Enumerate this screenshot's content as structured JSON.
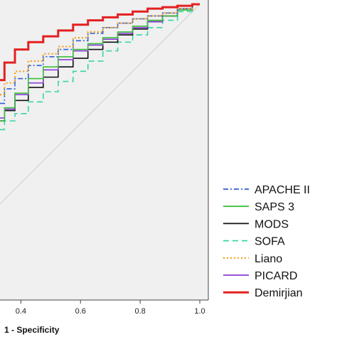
{
  "chart_data": {
    "type": "line",
    "title": "",
    "xlabel": "1 - Specificity",
    "ylabel": "",
    "xlim": [
      0.33,
      1.0
    ],
    "ylim": [
      0.0,
      1.0
    ],
    "x_ticks": [
      0.4,
      0.6,
      0.8,
      1.0
    ],
    "x_tick_labels": [
      "0.4",
      "0.6",
      "0.8",
      "1.0"
    ],
    "grid": false,
    "legend_position": "right",
    "plot_background": "#f0f0f0",
    "reference_line": {
      "color": "#d0d0d0",
      "style": "diagonal"
    },
    "series": [
      {
        "name": "APACHE II",
        "color": "#2e5fd6",
        "dash": "dash-dot",
        "x": [
          0.33,
          0.36,
          0.4,
          0.45,
          0.5,
          0.55,
          0.6,
          0.65,
          0.7,
          0.75,
          0.8,
          0.85,
          0.9,
          0.95,
          1.0
        ],
        "y": [
          0.66,
          0.71,
          0.745,
          0.79,
          0.82,
          0.845,
          0.875,
          0.9,
          0.92,
          0.935,
          0.95,
          0.96,
          0.97,
          0.985,
          1.0
        ]
      },
      {
        "name": "SAPS 3",
        "color": "#3cbf3c",
        "dash": "solid",
        "x": [
          0.33,
          0.36,
          0.4,
          0.45,
          0.5,
          0.55,
          0.6,
          0.65,
          0.7,
          0.75,
          0.8,
          0.85,
          0.9,
          0.95,
          1.0
        ],
        "y": [
          0.6,
          0.645,
          0.695,
          0.745,
          0.785,
          0.82,
          0.845,
          0.865,
          0.885,
          0.905,
          0.925,
          0.945,
          0.96,
          0.98,
          1.0
        ]
      },
      {
        "name": "MODS",
        "color": "#111111",
        "dash": "solid",
        "x": [
          0.33,
          0.36,
          0.4,
          0.45,
          0.5,
          0.55,
          0.6,
          0.65,
          0.7,
          0.75,
          0.8,
          0.85,
          0.9,
          0.95,
          1.0
        ],
        "y": [
          0.6,
          0.635,
          0.67,
          0.715,
          0.75,
          0.785,
          0.815,
          0.845,
          0.87,
          0.895,
          0.915,
          0.94,
          0.96,
          0.98,
          1.0
        ]
      },
      {
        "name": "SOFA",
        "color": "#35d6a5",
        "dash": "dashed",
        "x": [
          0.33,
          0.36,
          0.4,
          0.45,
          0.5,
          0.55,
          0.6,
          0.65,
          0.7,
          0.75,
          0.8,
          0.85,
          0.9,
          0.95,
          1.0
        ],
        "y": [
          0.57,
          0.6,
          0.625,
          0.665,
          0.7,
          0.735,
          0.77,
          0.805,
          0.84,
          0.87,
          0.895,
          0.92,
          0.945,
          0.975,
          1.0
        ]
      },
      {
        "name": "Liano",
        "color": "#f0a020",
        "dash": "dotted",
        "x": [
          0.33,
          0.36,
          0.4,
          0.45,
          0.5,
          0.55,
          0.6,
          0.65,
          0.7,
          0.75,
          0.8,
          0.85,
          0.9,
          0.95,
          1.0
        ],
        "y": [
          0.69,
          0.73,
          0.77,
          0.805,
          0.83,
          0.855,
          0.885,
          0.905,
          0.92,
          0.935,
          0.95,
          0.96,
          0.97,
          0.985,
          1.0
        ]
      },
      {
        "name": "PICARD",
        "color": "#8a3cd6",
        "dash": "solid",
        "x": [
          0.33,
          0.36,
          0.4,
          0.45,
          0.5,
          0.55,
          0.6,
          0.65,
          0.7,
          0.75,
          0.8,
          0.85,
          0.9,
          0.95,
          1.0
        ],
        "y": [
          0.61,
          0.64,
          0.69,
          0.73,
          0.775,
          0.81,
          0.84,
          0.86,
          0.88,
          0.9,
          0.92,
          0.94,
          0.96,
          0.98,
          1.0
        ]
      },
      {
        "name": "Demirjian",
        "color": "#e32020",
        "dash": "solid",
        "x": [
          0.33,
          0.36,
          0.4,
          0.45,
          0.5,
          0.55,
          0.6,
          0.65,
          0.7,
          0.75,
          0.8,
          0.85,
          0.9,
          0.95,
          1.0
        ],
        "y": [
          0.74,
          0.8,
          0.845,
          0.87,
          0.89,
          0.91,
          0.93,
          0.945,
          0.955,
          0.965,
          0.975,
          0.985,
          0.99,
          0.995,
          1.0
        ]
      }
    ]
  }
}
